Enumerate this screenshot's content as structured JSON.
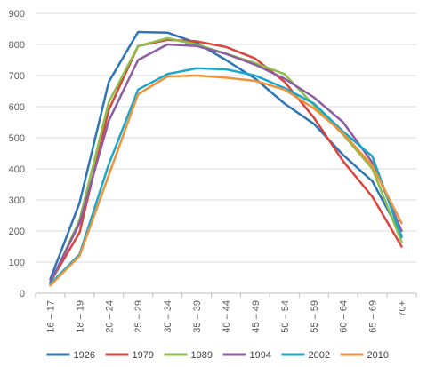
{
  "chart_data": {
    "type": "line",
    "title": "",
    "xlabel": "",
    "ylabel": "",
    "ylim": [
      0,
      900
    ],
    "y_ticks": [
      0,
      100,
      200,
      300,
      400,
      500,
      600,
      700,
      800,
      900
    ],
    "grid": "horizontal",
    "legend_position": "bottom",
    "categories": [
      "16 – 17",
      "18 – 19",
      "20 – 24",
      "25 – 29",
      "30 – 34",
      "35 – 39",
      "40 – 44",
      "45 – 49",
      "50 – 54",
      "55 – 59",
      "60 – 64",
      "65 – 69",
      "70+"
    ],
    "series": [
      {
        "name": "1926",
        "color": "#2E75B6",
        "values": [
          45,
          290,
          680,
          840,
          838,
          805,
          750,
          690,
          610,
          545,
          445,
          360,
          185
        ]
      },
      {
        "name": "1979",
        "color": "#D9453D",
        "values": [
          35,
          195,
          590,
          795,
          815,
          810,
          792,
          755,
          680,
          565,
          425,
          310,
          150
        ]
      },
      {
        "name": "1989",
        "color": "#8DBE4A",
        "values": [
          30,
          235,
          615,
          795,
          820,
          800,
          770,
          740,
          705,
          605,
          510,
          400,
          165
        ]
      },
      {
        "name": "1994",
        "color": "#8E5CA5",
        "values": [
          35,
          225,
          555,
          750,
          800,
          795,
          770,
          735,
          690,
          630,
          550,
          420,
          200
        ]
      },
      {
        "name": "2002",
        "color": "#1AA7C9",
        "values": [
          30,
          125,
          415,
          655,
          705,
          723,
          720,
          700,
          660,
          610,
          520,
          440,
          180
        ]
      },
      {
        "name": "2010",
        "color": "#F0923A",
        "values": [
          25,
          120,
          380,
          640,
          697,
          700,
          693,
          683,
          655,
          595,
          515,
          410,
          225
        ]
      }
    ]
  }
}
